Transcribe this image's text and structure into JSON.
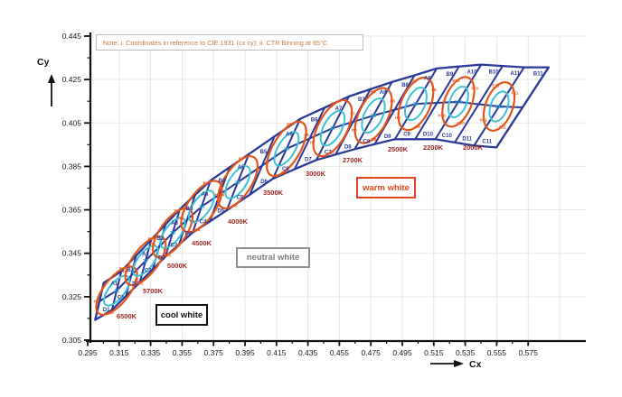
{
  "note": "Note: i. Coordinates in reference to CIE 1931 (cx cy); ii. CTR Binning at 85°C",
  "axes": {
    "x": {
      "title": "Cx",
      "min": 0.295,
      "max": 0.575,
      "major_step": 0.02,
      "minor_step": 0.01,
      "tick_labels": [
        "0.295",
        "0.315",
        "0.335",
        "0.355",
        "0.375",
        "0.395",
        "0.415",
        "0.435",
        "0.455",
        "0.475",
        "0.495",
        "0.515",
        "0.535",
        "0.555",
        "0.575"
      ]
    },
    "y": {
      "title": "Cy",
      "min": 0.305,
      "max": 0.445,
      "major_step": 0.02,
      "minor_step": 0.01,
      "tick_labels": [
        "0.445",
        "0.425",
        "0.405",
        "0.385",
        "0.365",
        "0.345",
        "0.325",
        "0.305"
      ]
    }
  },
  "chart_data": {
    "type": "scatter",
    "title": "CIE 1931 chromaticity CCT binning band with ANSI quadrangle bins, 5-step (orange) and 3-step (cyan) MacAdam ellipses",
    "grid": "on",
    "bins": [
      {
        "cct": "6500K",
        "center": {
          "cx": 0.3134,
          "cy": 0.3278
        },
        "quadrants": [
          "A1",
          "B1",
          "C1",
          "D1"
        ],
        "ring_labels": [
          "E1",
          "F1",
          "G1",
          "H1"
        ],
        "ellipse_3step": "31"
      },
      {
        "cct": "5700K",
        "center": {
          "cx": 0.3318,
          "cy": 0.3415
        },
        "quadrants": [
          "A2",
          "B2",
          "C2",
          "D2"
        ],
        "ring_labels": [
          "E2",
          "F2",
          "G2",
          "H2"
        ],
        "ellipse_3step": "32"
      },
      {
        "cct": "5000K",
        "center": {
          "cx": 0.349,
          "cy": 0.3544
        },
        "quadrants": [
          "A3",
          "B3",
          "C3",
          "D3"
        ],
        "ring_labels": [
          "E3",
          "F3",
          "G3",
          "H3"
        ],
        "ellipse_3step": "33"
      },
      {
        "cct": "4500K",
        "center": {
          "cx": 0.3674,
          "cy": 0.3665
        },
        "quadrants": [
          "A4",
          "B4",
          "C4",
          "D4"
        ],
        "ring_labels": [
          "E4",
          "F4",
          "G4",
          "H4"
        ],
        "ellipse_3step": "34"
      },
      {
        "cct": "4000K",
        "center": {
          "cx": 0.3904,
          "cy": 0.3777
        },
        "quadrants": [
          "A5",
          "B5",
          "C5",
          "D5"
        ],
        "ring_labels": [
          "E5",
          "F5",
          "G5",
          "H5"
        ],
        "ellipse_3step": "35"
      },
      {
        "cct": "3500K",
        "center": {
          "cx": 0.4214,
          "cy": 0.3931
        },
        "quadrants": [
          "A6",
          "B6",
          "C6",
          "D6"
        ],
        "ring_labels": [
          "E6",
          "F6",
          "G6",
          "H6"
        ],
        "ellipse_3step": "36"
      },
      {
        "cct": "3000K",
        "center": {
          "cx": 0.4507,
          "cy": 0.4026
        },
        "quadrants": [
          "A7",
          "B7",
          "C7",
          "D7"
        ],
        "ring_labels": [
          "E7",
          "F7",
          "G7",
          "H7"
        ],
        "ellipse_3step": "37"
      },
      {
        "cct": "2700K",
        "center": {
          "cx": 0.4766,
          "cy": 0.4084
        },
        "quadrants": [
          "A8",
          "B8",
          "C8",
          "D8"
        ],
        "ring_labels": [
          "E8",
          "F8",
          "G8",
          "H8"
        ],
        "ellipse_3step": "38"
      },
      {
        "cct": "2500K",
        "center": {
          "cx": 0.5036,
          "cy": 0.4138
        },
        "quadrants": [
          "A9",
          "B9",
          "C9",
          "D9"
        ],
        "ring_labels": [
          "E9",
          "F9",
          "G9",
          "H9"
        ],
        "ellipse_3step": "39"
      },
      {
        "cct": "2200K",
        "center": {
          "cx": 0.5306,
          "cy": 0.4147
        },
        "quadrants": [
          "A10",
          "B10",
          "C10",
          "D10"
        ],
        "ring_labels": [
          "E10",
          "F10",
          "G10",
          "H10"
        ],
        "ellipse_3step": "310"
      },
      {
        "cct": "2000K",
        "center": {
          "cx": 0.5565,
          "cy": 0.4126
        },
        "quadrants": [
          "A11",
          "B11",
          "C11",
          "D11"
        ],
        "ring_labels": [
          "E11",
          "F11",
          "G11",
          "H11"
        ],
        "ellipse_3step": "311"
      }
    ],
    "regions": [
      {
        "label": "cool white",
        "color": "#111111"
      },
      {
        "label": "neutral white",
        "color": "#7d7d7d"
      },
      {
        "label": "warm white",
        "color": "#e2441c"
      }
    ]
  },
  "colors": {
    "band_line": "#2b3a98",
    "ellipse_5step": "#e4551a",
    "ellipse_3step": "#3fc3d4",
    "ellipse_3step_text": "#2db8cc",
    "cct_label": "#9e2424",
    "bin_label": "#2b3a98",
    "note_text": "#bf7b44",
    "axis": "#111111",
    "grid": "#e9e7e3"
  }
}
